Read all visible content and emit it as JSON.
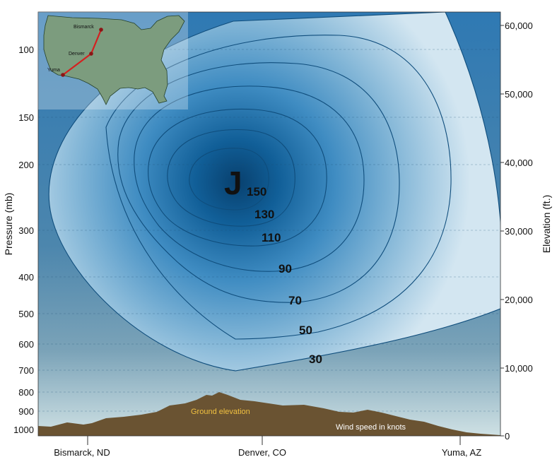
{
  "axes": {
    "left_title": "Pressure (mb)",
    "right_title": "Elevation (ft.)",
    "pressure_ticks": [
      "100",
      "150",
      "200",
      "300",
      "400",
      "500",
      "600",
      "700",
      "800",
      "900",
      "1000"
    ],
    "elevation_ticks": [
      "60,000",
      "50,000",
      "40,000",
      "30,000",
      "20,000",
      "10,000",
      "0"
    ],
    "locations": [
      "Bismarck, ND",
      "Denver, CO",
      "Yuma, AZ"
    ]
  },
  "jet": {
    "symbol": "J",
    "contour_labels": [
      "150",
      "130",
      "110",
      "90",
      "70",
      "50",
      "30"
    ]
  },
  "annotations": {
    "ground": "Ground elevation",
    "wind": "Wind speed in knots"
  },
  "inset_map": {
    "cities": [
      "Bismarck",
      "Denver",
      "Yuma"
    ]
  },
  "colors": {
    "jet_core": "#0a4f86",
    "sky_light": "#cfe3ee",
    "ground": "#6a5332",
    "ground_label": "#f0c040",
    "route": "#d42020",
    "map_land": "#7c9c7e"
  }
}
